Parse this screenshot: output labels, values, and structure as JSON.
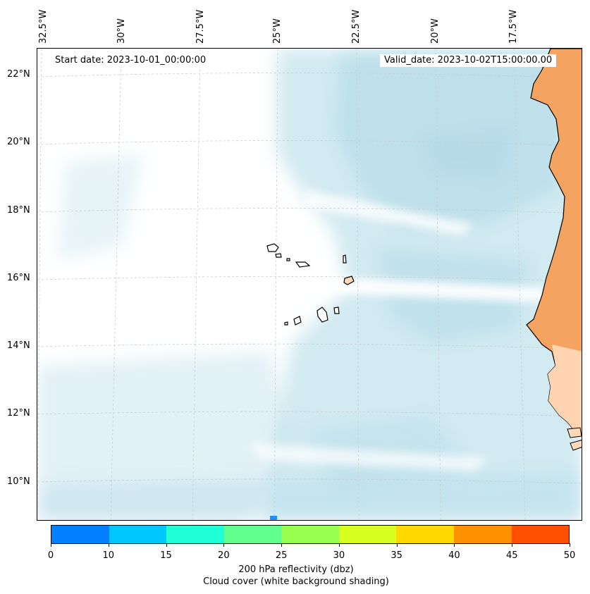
{
  "header": {
    "start_date": "Start date: 2023-10-01_00:00:00",
    "valid_date": "Valid_date: 2023-10-02T15:00:00.00"
  },
  "longitude_labels": [
    "32.5°W",
    "30°W",
    "27.5°W",
    "25°W",
    "22.5°W",
    "20°W",
    "17.5°W"
  ],
  "latitude_labels": [
    "22°N",
    "20°N",
    "18°N",
    "16°N",
    "14°N",
    "12°N",
    "10°N"
  ],
  "colorbar": {
    "ticks": [
      "0",
      "10",
      "15",
      "20",
      "25",
      "30",
      "35",
      "40",
      "45",
      "50"
    ],
    "colors": [
      "#0080ff",
      "#00c8ff",
      "#20ffd8",
      "#60ff90",
      "#98ff50",
      "#d8ff20",
      "#ffd800",
      "#ff9000",
      "#ff5000"
    ],
    "label_line1": "200 hPa reflectivity (dbz)",
    "label_line2": "Cloud cover (white background shading)"
  },
  "map_colors": {
    "cloud": "#add8e6",
    "land_orange": "#f4a460",
    "coast": "#000000",
    "grid": "#cccccc",
    "echo": "#1e90ff"
  }
}
